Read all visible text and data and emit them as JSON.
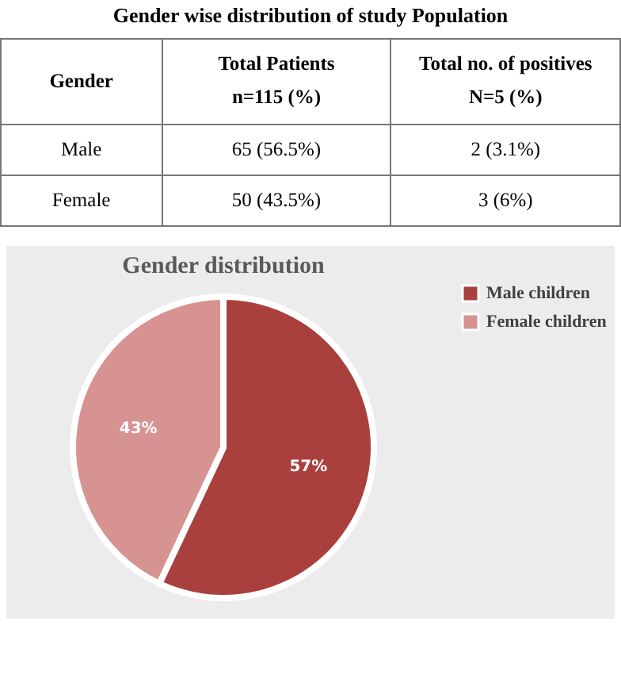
{
  "chart_data": [
    {
      "type": "other",
      "title": "Gender wise distribution of study Population",
      "annotations": [
        "Gender",
        "Total Patients\nn=115 (%)",
        "Total no. of positives\nN=5 (%)",
        "Male",
        "65 (56.5%)",
        "2 (3.1%)",
        "Female",
        "50 (43.5%)",
        "3 (6%)"
      ]
    },
    {
      "type": "pie",
      "title": "Gender distribution",
      "categories": [
        "Male children",
        "Female children"
      ],
      "values": [
        57,
        43
      ],
      "colors": [
        "#a9403d",
        "#d79292"
      ],
      "value_labels": [
        "57%",
        "43%"
      ],
      "legend": "right"
    }
  ]
}
